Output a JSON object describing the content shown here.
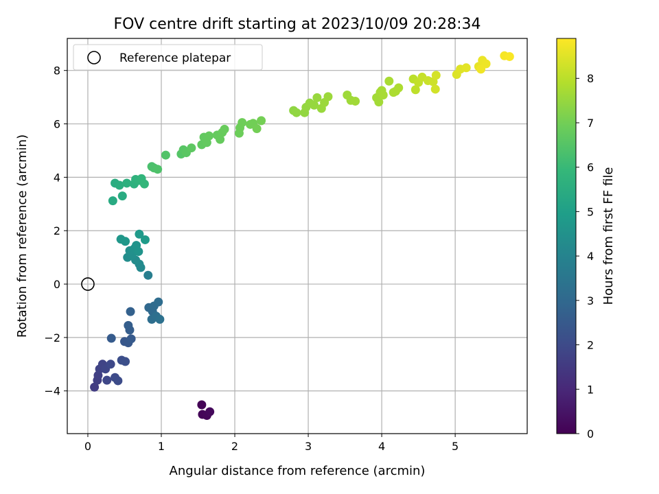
{
  "chart_data": {
    "type": "scatter",
    "title": "FOV centre drift starting at 2023/10/09 20:28:34",
    "xlabel": "Angular distance from reference (arcmin)",
    "ylabel": "Rotation from reference (arcmin)",
    "xlim": [
      -0.28,
      5.98
    ],
    "ylim": [
      -5.6,
      9.2
    ],
    "xticks": [
      0,
      1,
      2,
      3,
      4,
      5
    ],
    "yticks": [
      -4,
      -2,
      0,
      2,
      4,
      6,
      8
    ],
    "grid": true,
    "legend": {
      "position": "top-left",
      "entries": [
        "Reference platepar"
      ]
    },
    "reference": {
      "x": 0.0,
      "y": 0.0
    },
    "colorbar": {
      "label": "Hours from first FF file",
      "colormap": "viridis",
      "range": [
        0,
        8.9
      ],
      "ticks": [
        0,
        1,
        2,
        3,
        4,
        5,
        6,
        7,
        8
      ]
    },
    "points": [
      {
        "x": 1.55,
        "y": -4.52,
        "t": 0.05
      },
      {
        "x": 1.56,
        "y": -4.88,
        "t": 0.1
      },
      {
        "x": 1.62,
        "y": -4.92,
        "t": 0.15
      },
      {
        "x": 1.66,
        "y": -4.78,
        "t": 0.2
      },
      {
        "x": 0.09,
        "y": -3.86,
        "t": 1.6
      },
      {
        "x": 0.13,
        "y": -3.6,
        "t": 1.65
      },
      {
        "x": 0.14,
        "y": -3.42,
        "t": 1.7
      },
      {
        "x": 0.16,
        "y": -3.18,
        "t": 1.75
      },
      {
        "x": 0.2,
        "y": -3.0,
        "t": 1.8
      },
      {
        "x": 0.24,
        "y": -3.18,
        "t": 1.85
      },
      {
        "x": 0.26,
        "y": -3.6,
        "t": 1.9
      },
      {
        "x": 0.31,
        "y": -3.0,
        "t": 1.95
      },
      {
        "x": 0.37,
        "y": -3.5,
        "t": 2.0
      },
      {
        "x": 0.41,
        "y": -3.62,
        "t": 2.05
      },
      {
        "x": 0.46,
        "y": -2.85,
        "t": 2.1
      },
      {
        "x": 0.51,
        "y": -2.9,
        "t": 2.15
      },
      {
        "x": 0.5,
        "y": -2.15,
        "t": 2.4
      },
      {
        "x": 0.55,
        "y": -2.2,
        "t": 2.45
      },
      {
        "x": 0.59,
        "y": -2.05,
        "t": 2.5
      },
      {
        "x": 0.32,
        "y": -2.03,
        "t": 2.55
      },
      {
        "x": 0.57,
        "y": -1.72,
        "t": 2.6
      },
      {
        "x": 0.55,
        "y": -1.55,
        "t": 2.65
      },
      {
        "x": 0.58,
        "y": -1.03,
        "t": 2.75
      },
      {
        "x": 0.83,
        "y": -0.88,
        "t": 3.0
      },
      {
        "x": 0.88,
        "y": -1.02,
        "t": 3.05
      },
      {
        "x": 0.9,
        "y": -0.82,
        "t": 3.1
      },
      {
        "x": 0.96,
        "y": -0.67,
        "t": 3.15
      },
      {
        "x": 0.87,
        "y": -1.32,
        "t": 3.2
      },
      {
        "x": 0.93,
        "y": -1.2,
        "t": 3.25
      },
      {
        "x": 0.98,
        "y": -1.32,
        "t": 3.3
      },
      {
        "x": 0.82,
        "y": 0.33,
        "t": 3.8
      },
      {
        "x": 0.72,
        "y": 0.62,
        "t": 4.2
      },
      {
        "x": 0.7,
        "y": 0.75,
        "t": 4.25
      },
      {
        "x": 0.65,
        "y": 0.9,
        "t": 4.3
      },
      {
        "x": 0.54,
        "y": 1.0,
        "t": 4.35
      },
      {
        "x": 0.6,
        "y": 1.1,
        "t": 4.4
      },
      {
        "x": 0.57,
        "y": 1.25,
        "t": 4.45
      },
      {
        "x": 0.63,
        "y": 1.32,
        "t": 4.5
      },
      {
        "x": 0.66,
        "y": 1.45,
        "t": 4.55
      },
      {
        "x": 0.69,
        "y": 1.22,
        "t": 4.6
      },
      {
        "x": 0.45,
        "y": 1.68,
        "t": 4.7
      },
      {
        "x": 0.51,
        "y": 1.6,
        "t": 4.75
      },
      {
        "x": 0.7,
        "y": 1.87,
        "t": 4.8
      },
      {
        "x": 0.78,
        "y": 1.66,
        "t": 4.85
      },
      {
        "x": 0.34,
        "y": 3.12,
        "t": 5.4
      },
      {
        "x": 0.47,
        "y": 3.3,
        "t": 5.45
      },
      {
        "x": 0.37,
        "y": 3.78,
        "t": 5.5
      },
      {
        "x": 0.43,
        "y": 3.7,
        "t": 5.55
      },
      {
        "x": 0.53,
        "y": 3.78,
        "t": 5.6
      },
      {
        "x": 0.63,
        "y": 3.75,
        "t": 5.65
      },
      {
        "x": 0.65,
        "y": 3.92,
        "t": 5.7
      },
      {
        "x": 0.7,
        "y": 3.88,
        "t": 5.75
      },
      {
        "x": 0.73,
        "y": 3.95,
        "t": 5.8
      },
      {
        "x": 0.77,
        "y": 3.75,
        "t": 5.85
      },
      {
        "x": 0.87,
        "y": 4.4,
        "t": 6.3
      },
      {
        "x": 0.9,
        "y": 4.35,
        "t": 6.35
      },
      {
        "x": 0.95,
        "y": 4.3,
        "t": 6.4
      },
      {
        "x": 1.06,
        "y": 4.83,
        "t": 6.45
      },
      {
        "x": 1.27,
        "y": 4.87,
        "t": 6.5
      },
      {
        "x": 1.3,
        "y": 5.03,
        "t": 6.55
      },
      {
        "x": 1.34,
        "y": 4.92,
        "t": 6.6
      },
      {
        "x": 1.41,
        "y": 5.1,
        "t": 6.65
      },
      {
        "x": 1.55,
        "y": 5.22,
        "t": 6.7
      },
      {
        "x": 1.58,
        "y": 5.5,
        "t": 6.72
      },
      {
        "x": 1.62,
        "y": 5.3,
        "t": 6.74
      },
      {
        "x": 1.65,
        "y": 5.55,
        "t": 6.76
      },
      {
        "x": 1.76,
        "y": 5.58,
        "t": 6.78
      },
      {
        "x": 1.8,
        "y": 5.42,
        "t": 6.8
      },
      {
        "x": 1.83,
        "y": 5.68,
        "t": 6.82
      },
      {
        "x": 1.86,
        "y": 5.8,
        "t": 6.84
      },
      {
        "x": 2.06,
        "y": 5.65,
        "t": 6.9
      },
      {
        "x": 2.07,
        "y": 5.85,
        "t": 6.92
      },
      {
        "x": 2.1,
        "y": 6.05,
        "t": 6.94
      },
      {
        "x": 2.21,
        "y": 5.98,
        "t": 6.96
      },
      {
        "x": 2.25,
        "y": 6.02,
        "t": 6.98
      },
      {
        "x": 2.3,
        "y": 5.82,
        "t": 7.0
      },
      {
        "x": 2.36,
        "y": 6.12,
        "t": 7.02
      },
      {
        "x": 2.8,
        "y": 6.5,
        "t": 7.4
      },
      {
        "x": 2.84,
        "y": 6.42,
        "t": 7.42
      },
      {
        "x": 2.95,
        "y": 6.42,
        "t": 7.44
      },
      {
        "x": 2.97,
        "y": 6.62,
        "t": 7.46
      },
      {
        "x": 3.02,
        "y": 6.78,
        "t": 7.48
      },
      {
        "x": 3.08,
        "y": 6.7,
        "t": 7.5
      },
      {
        "x": 3.12,
        "y": 6.98,
        "t": 7.52
      },
      {
        "x": 3.18,
        "y": 6.58,
        "t": 7.54
      },
      {
        "x": 3.22,
        "y": 6.8,
        "t": 7.56
      },
      {
        "x": 3.27,
        "y": 7.02,
        "t": 7.58
      },
      {
        "x": 3.53,
        "y": 7.08,
        "t": 7.6
      },
      {
        "x": 3.58,
        "y": 6.88,
        "t": 7.62
      },
      {
        "x": 3.64,
        "y": 6.85,
        "t": 7.64
      },
      {
        "x": 3.93,
        "y": 6.98,
        "t": 7.66
      },
      {
        "x": 3.96,
        "y": 6.82,
        "t": 7.68
      },
      {
        "x": 3.98,
        "y": 7.18,
        "t": 7.7
      },
      {
        "x": 4.0,
        "y": 7.25,
        "t": 7.72
      },
      {
        "x": 4.02,
        "y": 7.08,
        "t": 7.74
      },
      {
        "x": 4.1,
        "y": 7.6,
        "t": 7.76
      },
      {
        "x": 4.16,
        "y": 7.18,
        "t": 7.78
      },
      {
        "x": 4.19,
        "y": 7.22,
        "t": 7.8
      },
      {
        "x": 4.23,
        "y": 7.35,
        "t": 7.82
      },
      {
        "x": 4.43,
        "y": 7.68,
        "t": 8.0
      },
      {
        "x": 4.46,
        "y": 7.28,
        "t": 8.05
      },
      {
        "x": 4.5,
        "y": 7.55,
        "t": 8.1
      },
      {
        "x": 4.55,
        "y": 7.75,
        "t": 8.15
      },
      {
        "x": 4.63,
        "y": 7.62,
        "t": 8.2
      },
      {
        "x": 4.7,
        "y": 7.58,
        "t": 8.25
      },
      {
        "x": 4.73,
        "y": 7.3,
        "t": 8.3
      },
      {
        "x": 4.74,
        "y": 7.82,
        "t": 8.35
      },
      {
        "x": 5.02,
        "y": 7.85,
        "t": 8.45
      },
      {
        "x": 5.07,
        "y": 8.05,
        "t": 8.5
      },
      {
        "x": 5.15,
        "y": 8.1,
        "t": 8.55
      },
      {
        "x": 5.32,
        "y": 8.15,
        "t": 8.6
      },
      {
        "x": 5.37,
        "y": 8.38,
        "t": 8.65
      },
      {
        "x": 5.42,
        "y": 8.25,
        "t": 8.7
      },
      {
        "x": 5.35,
        "y": 8.05,
        "t": 8.72
      },
      {
        "x": 5.67,
        "y": 8.55,
        "t": 8.8
      },
      {
        "x": 5.74,
        "y": 8.52,
        "t": 8.85
      }
    ]
  }
}
